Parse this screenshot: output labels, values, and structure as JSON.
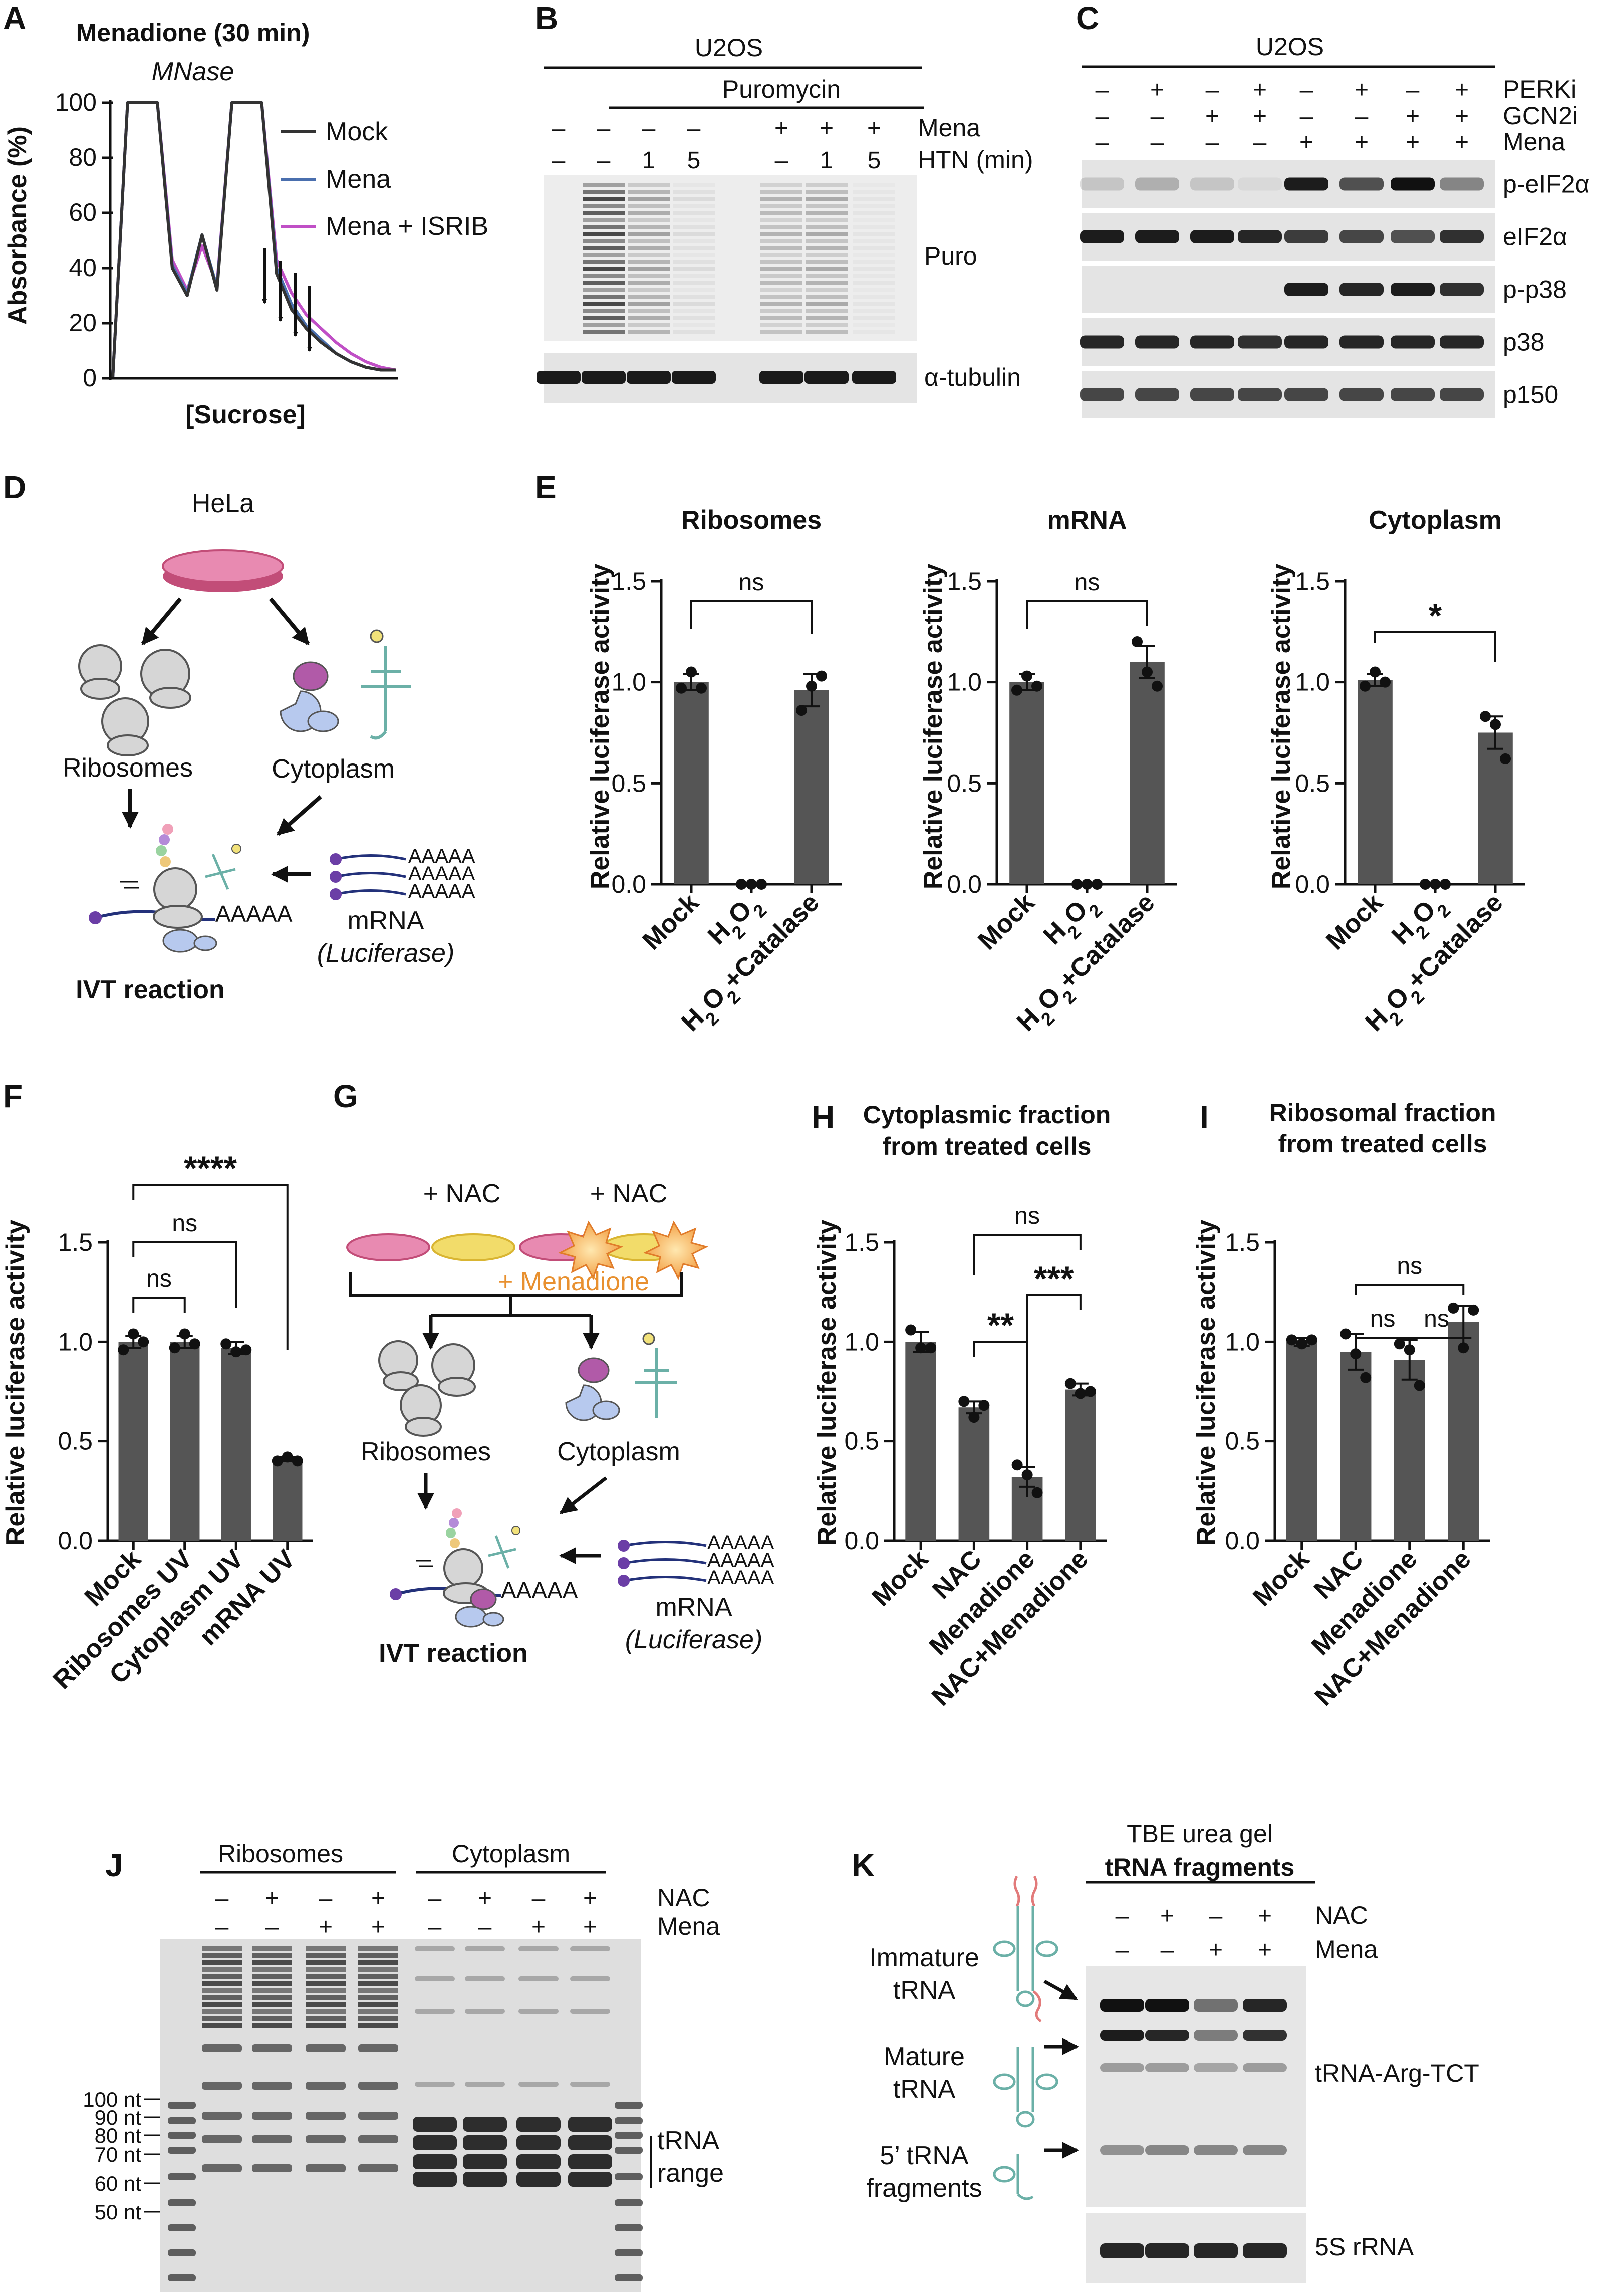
{
  "panels": {
    "A": {
      "letter": "A",
      "title": "Menadione (30 min)",
      "subtitle": "MNase",
      "ylabel": "Absorbance (%)",
      "xlabel": "[Sucrose]",
      "yticks": [
        "0",
        "20",
        "40",
        "60",
        "80",
        "100"
      ],
      "legend": [
        "Mock",
        "Mena",
        "Mena + ISRIB"
      ],
      "colors": {
        "mock": "#333333",
        "mena": "#4a6fae",
        "isrib": "#c04fc6"
      }
    },
    "B": {
      "letter": "B",
      "cell": "U2OS",
      "treatment": "Puromycin",
      "row_labels": [
        "Mena",
        "HTN (min)"
      ],
      "mena": [
        "–",
        "–",
        "–",
        "–",
        "+",
        "+",
        "+"
      ],
      "htn": [
        "–",
        "–",
        "1",
        "5",
        "–",
        "1",
        "5"
      ],
      "bands": [
        "Puro",
        "α-tubulin"
      ]
    },
    "C": {
      "letter": "C",
      "cell": "U2OS",
      "row_labels": [
        "PERKi",
        "GCN2i",
        "Mena"
      ],
      "perki": [
        "–",
        "+",
        "–",
        "+",
        "–",
        "+",
        "–",
        "+"
      ],
      "gcn2i": [
        "–",
        "–",
        "+",
        "+",
        "–",
        "–",
        "+",
        "+"
      ],
      "mena": [
        "–",
        "–",
        "–",
        "–",
        "+",
        "+",
        "+",
        "+"
      ],
      "bands": [
        "p-eIF2α",
        "eIF2α",
        "p-p38",
        "p38",
        "p150"
      ]
    },
    "D": {
      "letter": "D",
      "cell": "HeLa",
      "ribosomes": "Ribosomes",
      "cytoplasm": "Cytoplasm",
      "polyA": "AAAAA",
      "mrna": "mRNA",
      "luciferase": "(Luciferase)",
      "reaction": "IVT reaction"
    },
    "E": {
      "letter": "E",
      "ylabel": "Relative luciferase activity"
    },
    "F": {
      "letter": "F",
      "ylabel": "Relative luciferase activity"
    },
    "G": {
      "letter": "G",
      "nac1": "+ NAC",
      "nac2": "+ NAC",
      "menadione": "+ Menadione",
      "ribosomes": "Ribosomes",
      "cytoplasm": "Cytoplasm",
      "polyA": "AAAAA",
      "mrna": "mRNA",
      "luciferase": "(Luciferase)",
      "reaction": "IVT reaction"
    },
    "H": {
      "letter": "H",
      "title1": "Cytoplasmic fraction",
      "title2": "from treated cells",
      "ylabel": "Relative luciferase activity"
    },
    "I": {
      "letter": "I",
      "title1": "Ribosomal fraction",
      "title2": "from treated cells",
      "ylabel": "Relative luciferase activity"
    },
    "J": {
      "letter": "J",
      "groups": [
        "Ribosomes",
        "Cytoplasm"
      ],
      "row_labels": [
        "NAC",
        "Mena"
      ],
      "nac": [
        "–",
        "+",
        "–",
        "+",
        "–",
        "+",
        "–",
        "+"
      ],
      "mena": [
        "–",
        "–",
        "+",
        "+",
        "–",
        "–",
        "+",
        "+"
      ],
      "markers": [
        "100 nt",
        "90 nt",
        "80 nt",
        "70 nt",
        "60 nt",
        "50 nt"
      ],
      "range1": "tRNA",
      "range2": "range"
    },
    "K": {
      "letter": "K",
      "title1": "TBE urea gel",
      "title2": "tRNA fragments",
      "row_labels": [
        "NAC",
        "Mena"
      ],
      "nac": [
        "–",
        "+",
        "–",
        "+"
      ],
      "mena": [
        "–",
        "–",
        "+",
        "+"
      ],
      "schema": [
        "Immature",
        "tRNA",
        "Mature",
        "tRNA",
        "5’ tRNA",
        "fragments"
      ],
      "bands": [
        "tRNA-Arg-TCT",
        "5S rRNA"
      ]
    }
  },
  "chart_data": [
    {
      "panel": "A",
      "type": "line",
      "title": "Menadione (30 min)",
      "xlabel": "[Sucrose]",
      "ylabel": "Absorbance (%)",
      "ylim": [
        0,
        100
      ],
      "series": [
        {
          "name": "Mock",
          "y": [
            0,
            100,
            100,
            100,
            40,
            30,
            52,
            32,
            100,
            100,
            100,
            38,
            25,
            18,
            13,
            9,
            6,
            4,
            3,
            3
          ]
        },
        {
          "name": "Mena",
          "y": [
            0,
            100,
            100,
            100,
            41,
            31,
            52,
            33,
            100,
            100,
            100,
            40,
            27,
            19,
            14,
            9,
            6,
            4,
            3,
            3
          ]
        },
        {
          "name": "Mena + ISRIB",
          "y": [
            0,
            100,
            100,
            100,
            43,
            32,
            48,
            34,
            100,
            100,
            100,
            43,
            31,
            23,
            18,
            13,
            9,
            6,
            4,
            3
          ]
        }
      ]
    },
    {
      "panel": "E1",
      "type": "bar",
      "title": "Ribosomes",
      "ylabel": "Relative luciferase activity",
      "ylim": [
        0,
        1.5
      ],
      "yticks": [
        "0.0",
        "0.5",
        "1.0",
        "1.5"
      ],
      "categories": [
        "Mock",
        "H2O2",
        "H2O2+Catalase"
      ],
      "values": [
        1.0,
        0.0,
        0.96
      ],
      "errors": [
        0.04,
        0,
        0.08
      ],
      "points": [
        [
          0.97,
          1.05,
          0.97
        ],
        [
          0,
          0,
          0
        ],
        [
          0.86,
          0.98,
          1.03
        ]
      ],
      "significance": [
        {
          "between": [
            0,
            2
          ],
          "label": "ns"
        }
      ]
    },
    {
      "panel": "E2",
      "type": "bar",
      "title": "mRNA",
      "ylabel": "Relative luciferase activity",
      "ylim": [
        0,
        1.5
      ],
      "yticks": [
        "0.0",
        "0.5",
        "1.0",
        "1.5"
      ],
      "categories": [
        "Mock",
        "H2O2",
        "H2O2+Catalase"
      ],
      "values": [
        1.0,
        0.0,
        1.1
      ],
      "errors": [
        0.04,
        0,
        0.08
      ],
      "points": [
        [
          0.96,
          1.03,
          0.98
        ],
        [
          0,
          0,
          0
        ],
        [
          1.2,
          1.05,
          0.98
        ]
      ],
      "significance": [
        {
          "between": [
            0,
            2
          ],
          "label": "ns"
        }
      ]
    },
    {
      "panel": "E3",
      "type": "bar",
      "title": "Cytoplasm",
      "ylabel": "Relative luciferase activity",
      "ylim": [
        0,
        1.5
      ],
      "yticks": [
        "0.0",
        "0.5",
        "1.0",
        "1.5"
      ],
      "categories": [
        "Mock",
        "H2O2",
        "H2O2+Catalase"
      ],
      "values": [
        1.01,
        0.0,
        0.75
      ],
      "errors": [
        0.03,
        0,
        0.08
      ],
      "points": [
        [
          0.98,
          1.05,
          1.0
        ],
        [
          0,
          0,
          0
        ],
        [
          0.83,
          0.79,
          0.62
        ]
      ],
      "significance": [
        {
          "between": [
            0,
            2
          ],
          "label": "*"
        }
      ]
    },
    {
      "panel": "F",
      "type": "bar",
      "ylabel": "Relative luciferase activity",
      "ylim": [
        0,
        1.5
      ],
      "yticks": [
        "0.0",
        "0.5",
        "1.0",
        "1.5"
      ],
      "categories": [
        "Mock",
        "Ribosomes UV",
        "Cytoplasm UV",
        "mRNA UV"
      ],
      "values": [
        1.0,
        1.0,
        0.97,
        0.41
      ],
      "errors": [
        0.03,
        0.03,
        0.03,
        0.01
      ],
      "points": [
        [
          0.96,
          1.04,
          1.0
        ],
        [
          0.97,
          1.04,
          0.99
        ],
        [
          0.99,
          0.95,
          0.96
        ],
        [
          0.4,
          0.42,
          0.4
        ]
      ],
      "significance": [
        {
          "between": [
            0,
            1
          ],
          "label": "ns"
        },
        {
          "between": [
            0,
            2
          ],
          "label": "ns"
        },
        {
          "between": [
            0,
            3
          ],
          "label": "****"
        }
      ]
    },
    {
      "panel": "H",
      "type": "bar",
      "title": "Cytoplasmic fraction from treated cells",
      "ylabel": "Relative luciferase activity",
      "ylim": [
        0,
        1.5
      ],
      "yticks": [
        "0.0",
        "0.5",
        "1.0",
        "1.5"
      ],
      "categories": [
        "Mock",
        "NAC",
        "Menadione",
        "NAC+Menadione"
      ],
      "values": [
        1.0,
        0.67,
        0.32,
        0.76
      ],
      "errors": [
        0.05,
        0.03,
        0.05,
        0.03
      ],
      "points": [
        [
          1.06,
          0.97,
          0.97
        ],
        [
          0.7,
          0.62,
          0.68
        ],
        [
          0.38,
          0.33,
          0.24
        ],
        [
          0.79,
          0.74,
          0.75
        ]
      ],
      "significance": [
        {
          "between": [
            1,
            2
          ],
          "label": "**"
        },
        {
          "between": [
            2,
            3
          ],
          "label": "***"
        },
        {
          "between": [
            1,
            3
          ],
          "label": "ns"
        }
      ]
    },
    {
      "panel": "I",
      "type": "bar",
      "title": "Ribosomal fraction from treated cells",
      "ylabel": "Relative luciferase activity",
      "ylim": [
        0,
        1.5
      ],
      "yticks": [
        "0.0",
        "0.5",
        "1.0",
        "1.5"
      ],
      "categories": [
        "Mock",
        "NAC",
        "Menadione",
        "NAC+Menadione"
      ],
      "values": [
        1.0,
        0.95,
        0.91,
        1.1
      ],
      "errors": [
        0.02,
        0.09,
        0.1,
        0.08
      ],
      "points": [
        [
          1.01,
          0.99,
          1.01
        ],
        [
          1.04,
          0.94,
          0.82
        ],
        [
          0.99,
          0.96,
          0.78
        ],
        [
          1.17,
          0.97,
          1.16
        ]
      ],
      "significance": [
        {
          "between": [
            1,
            2
          ],
          "label": "ns"
        },
        {
          "between": [
            2,
            3
          ],
          "label": "ns"
        },
        {
          "between": [
            1,
            3
          ],
          "label": "ns"
        }
      ]
    }
  ]
}
